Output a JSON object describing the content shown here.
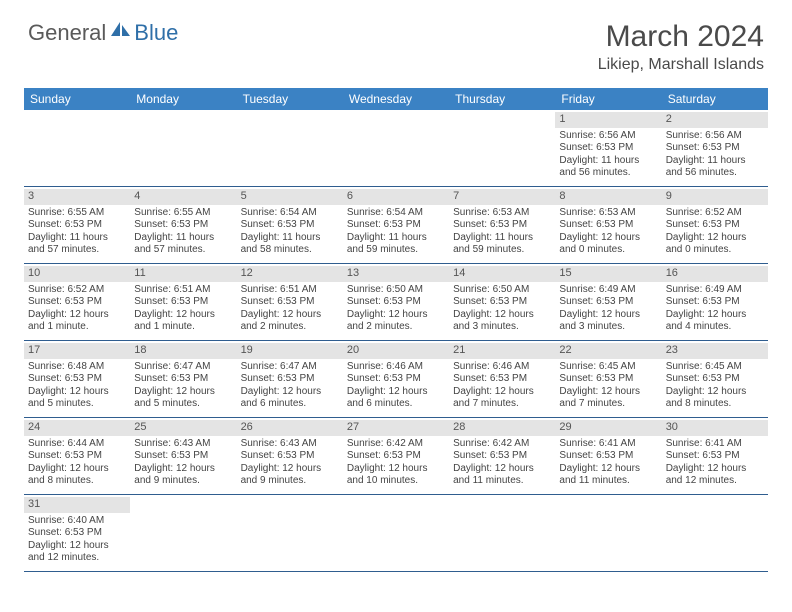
{
  "brand": {
    "general": "General",
    "blue": "Blue"
  },
  "title": "March 2024",
  "location": "Likiep, Marshall Islands",
  "colors": {
    "header_bg": "#3b82c4",
    "row_border": "#2f5d8f",
    "daynum_bg": "#e4e4e4"
  },
  "weekdays": [
    "Sunday",
    "Monday",
    "Tuesday",
    "Wednesday",
    "Thursday",
    "Friday",
    "Saturday"
  ],
  "weeks": [
    [
      {
        "empty": true
      },
      {
        "empty": true
      },
      {
        "empty": true
      },
      {
        "empty": true
      },
      {
        "empty": true
      },
      {
        "day": "1",
        "sunrise": "Sunrise: 6:56 AM",
        "sunset": "Sunset: 6:53 PM",
        "daylight": "Daylight: 11 hours and 56 minutes."
      },
      {
        "day": "2",
        "sunrise": "Sunrise: 6:56 AM",
        "sunset": "Sunset: 6:53 PM",
        "daylight": "Daylight: 11 hours and 56 minutes."
      }
    ],
    [
      {
        "day": "3",
        "sunrise": "Sunrise: 6:55 AM",
        "sunset": "Sunset: 6:53 PM",
        "daylight": "Daylight: 11 hours and 57 minutes."
      },
      {
        "day": "4",
        "sunrise": "Sunrise: 6:55 AM",
        "sunset": "Sunset: 6:53 PM",
        "daylight": "Daylight: 11 hours and 57 minutes."
      },
      {
        "day": "5",
        "sunrise": "Sunrise: 6:54 AM",
        "sunset": "Sunset: 6:53 PM",
        "daylight": "Daylight: 11 hours and 58 minutes."
      },
      {
        "day": "6",
        "sunrise": "Sunrise: 6:54 AM",
        "sunset": "Sunset: 6:53 PM",
        "daylight": "Daylight: 11 hours and 59 minutes."
      },
      {
        "day": "7",
        "sunrise": "Sunrise: 6:53 AM",
        "sunset": "Sunset: 6:53 PM",
        "daylight": "Daylight: 11 hours and 59 minutes."
      },
      {
        "day": "8",
        "sunrise": "Sunrise: 6:53 AM",
        "sunset": "Sunset: 6:53 PM",
        "daylight": "Daylight: 12 hours and 0 minutes."
      },
      {
        "day": "9",
        "sunrise": "Sunrise: 6:52 AM",
        "sunset": "Sunset: 6:53 PM",
        "daylight": "Daylight: 12 hours and 0 minutes."
      }
    ],
    [
      {
        "day": "10",
        "sunrise": "Sunrise: 6:52 AM",
        "sunset": "Sunset: 6:53 PM",
        "daylight": "Daylight: 12 hours and 1 minute."
      },
      {
        "day": "11",
        "sunrise": "Sunrise: 6:51 AM",
        "sunset": "Sunset: 6:53 PM",
        "daylight": "Daylight: 12 hours and 1 minute."
      },
      {
        "day": "12",
        "sunrise": "Sunrise: 6:51 AM",
        "sunset": "Sunset: 6:53 PM",
        "daylight": "Daylight: 12 hours and 2 minutes."
      },
      {
        "day": "13",
        "sunrise": "Sunrise: 6:50 AM",
        "sunset": "Sunset: 6:53 PM",
        "daylight": "Daylight: 12 hours and 2 minutes."
      },
      {
        "day": "14",
        "sunrise": "Sunrise: 6:50 AM",
        "sunset": "Sunset: 6:53 PM",
        "daylight": "Daylight: 12 hours and 3 minutes."
      },
      {
        "day": "15",
        "sunrise": "Sunrise: 6:49 AM",
        "sunset": "Sunset: 6:53 PM",
        "daylight": "Daylight: 12 hours and 3 minutes."
      },
      {
        "day": "16",
        "sunrise": "Sunrise: 6:49 AM",
        "sunset": "Sunset: 6:53 PM",
        "daylight": "Daylight: 12 hours and 4 minutes."
      }
    ],
    [
      {
        "day": "17",
        "sunrise": "Sunrise: 6:48 AM",
        "sunset": "Sunset: 6:53 PM",
        "daylight": "Daylight: 12 hours and 5 minutes."
      },
      {
        "day": "18",
        "sunrise": "Sunrise: 6:47 AM",
        "sunset": "Sunset: 6:53 PM",
        "daylight": "Daylight: 12 hours and 5 minutes."
      },
      {
        "day": "19",
        "sunrise": "Sunrise: 6:47 AM",
        "sunset": "Sunset: 6:53 PM",
        "daylight": "Daylight: 12 hours and 6 minutes."
      },
      {
        "day": "20",
        "sunrise": "Sunrise: 6:46 AM",
        "sunset": "Sunset: 6:53 PM",
        "daylight": "Daylight: 12 hours and 6 minutes."
      },
      {
        "day": "21",
        "sunrise": "Sunrise: 6:46 AM",
        "sunset": "Sunset: 6:53 PM",
        "daylight": "Daylight: 12 hours and 7 minutes."
      },
      {
        "day": "22",
        "sunrise": "Sunrise: 6:45 AM",
        "sunset": "Sunset: 6:53 PM",
        "daylight": "Daylight: 12 hours and 7 minutes."
      },
      {
        "day": "23",
        "sunrise": "Sunrise: 6:45 AM",
        "sunset": "Sunset: 6:53 PM",
        "daylight": "Daylight: 12 hours and 8 minutes."
      }
    ],
    [
      {
        "day": "24",
        "sunrise": "Sunrise: 6:44 AM",
        "sunset": "Sunset: 6:53 PM",
        "daylight": "Daylight: 12 hours and 8 minutes."
      },
      {
        "day": "25",
        "sunrise": "Sunrise: 6:43 AM",
        "sunset": "Sunset: 6:53 PM",
        "daylight": "Daylight: 12 hours and 9 minutes."
      },
      {
        "day": "26",
        "sunrise": "Sunrise: 6:43 AM",
        "sunset": "Sunset: 6:53 PM",
        "daylight": "Daylight: 12 hours and 9 minutes."
      },
      {
        "day": "27",
        "sunrise": "Sunrise: 6:42 AM",
        "sunset": "Sunset: 6:53 PM",
        "daylight": "Daylight: 12 hours and 10 minutes."
      },
      {
        "day": "28",
        "sunrise": "Sunrise: 6:42 AM",
        "sunset": "Sunset: 6:53 PM",
        "daylight": "Daylight: 12 hours and 11 minutes."
      },
      {
        "day": "29",
        "sunrise": "Sunrise: 6:41 AM",
        "sunset": "Sunset: 6:53 PM",
        "daylight": "Daylight: 12 hours and 11 minutes."
      },
      {
        "day": "30",
        "sunrise": "Sunrise: 6:41 AM",
        "sunset": "Sunset: 6:53 PM",
        "daylight": "Daylight: 12 hours and 12 minutes."
      }
    ],
    [
      {
        "day": "31",
        "sunrise": "Sunrise: 6:40 AM",
        "sunset": "Sunset: 6:53 PM",
        "daylight": "Daylight: 12 hours and 12 minutes."
      },
      {
        "empty": true
      },
      {
        "empty": true
      },
      {
        "empty": true
      },
      {
        "empty": true
      },
      {
        "empty": true
      },
      {
        "empty": true
      }
    ]
  ]
}
